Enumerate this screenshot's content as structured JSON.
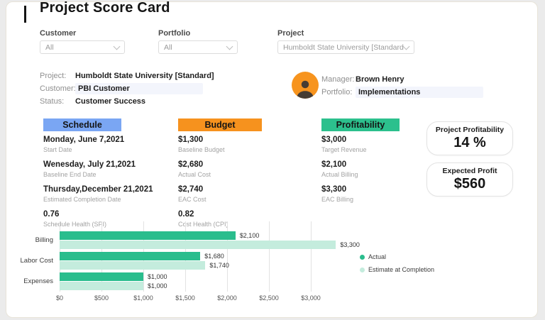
{
  "page": {
    "title": "Project Score Card"
  },
  "filters": [
    {
      "id": "customer",
      "label": "Customer",
      "value": "All"
    },
    {
      "id": "portfolio",
      "label": "Portfolio",
      "value": "All"
    },
    {
      "id": "project",
      "label": "Project",
      "value": "Humboldt State University [Standard]"
    }
  ],
  "project_info": [
    {
      "id": "project",
      "label": "Project:",
      "value": "Humboldt State University [Standard]",
      "highlight": false
    },
    {
      "id": "customer",
      "label": "Customer:",
      "value": "PBI Customer",
      "highlight": true
    },
    {
      "id": "status",
      "label": "Status:",
      "value": "Customer Success",
      "highlight": false
    }
  ],
  "manager_info": [
    {
      "id": "manager",
      "label": "Manager:",
      "value": "Brown Henry",
      "highlight": false
    },
    {
      "id": "portfolio",
      "label": "Portfolio:",
      "value": "Implementations",
      "highlight": true
    }
  ],
  "avatar_color": "#f7941e",
  "kpi_columns": [
    {
      "title": "Schedule",
      "color": "#7aa6f3",
      "items": [
        {
          "value": "Monday, June 7,2021",
          "label": "Start Date"
        },
        {
          "value": "Wenesday, July 21,2021",
          "label": "Baseline End Date"
        },
        {
          "value": "Thursday,December 21,2021",
          "label": "Estimated Completion Date"
        },
        {
          "value": "0.76",
          "label": "Schedule Health (SPI)"
        }
      ]
    },
    {
      "title": "Budget",
      "color": "#f6921e",
      "items": [
        {
          "value": "$1,300",
          "label": "Baseline Budget"
        },
        {
          "value": "$2,680",
          "label": "Actual Cost"
        },
        {
          "value": "$2,740",
          "label": "EAC Cost"
        },
        {
          "value": "0.82",
          "label": "Cost Health (CPI)"
        }
      ]
    },
    {
      "title": "Profitability",
      "color": "#2cc08d",
      "items": [
        {
          "value": "$3,000",
          "label": "Target Revenue"
        },
        {
          "value": "$2,100",
          "label": "Actual Billing"
        },
        {
          "value": "$3,300",
          "label": "EAC Billing"
        }
      ]
    }
  ],
  "summary_cards": [
    {
      "label": "Project Profitability",
      "value": "14 %"
    },
    {
      "label": "Expected Profit",
      "value": "$560"
    }
  ],
  "chart_data": {
    "type": "bar",
    "orientation": "horizontal",
    "categories": [
      "Billing",
      "Labor Cost",
      "Expenses"
    ],
    "series": [
      {
        "name": "Actual",
        "color": "#2abd8d",
        "values": [
          2100,
          1680,
          1000
        ],
        "labels": [
          "$2,100",
          "$1,680",
          "$1,000"
        ]
      },
      {
        "name": "Estimate at Completion",
        "color": "#c4ecdd",
        "values": [
          3300,
          1740,
          1000
        ],
        "labels": [
          "$3,300",
          "$1,740",
          "$1,000"
        ]
      }
    ],
    "x_ticks": [
      "$0",
      "$500",
      "$1,000",
      "$1,500",
      "$2,000",
      "$2,500",
      "$3,000"
    ],
    "x_tick_values": [
      0,
      500,
      1000,
      1500,
      2000,
      2500,
      3000
    ],
    "xlim": [
      0,
      3500
    ],
    "grid": true,
    "legend_position": "right"
  }
}
